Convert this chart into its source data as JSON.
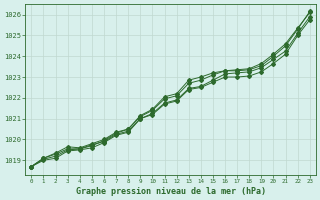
{
  "xlabel": "Graphe pression niveau de la mer (hPa)",
  "ylim": [
    1018.3,
    1026.5
  ],
  "xlim": [
    -0.5,
    23.5
  ],
  "yticks": [
    1019,
    1020,
    1021,
    1022,
    1023,
    1024,
    1025,
    1026
  ],
  "xticks": [
    0,
    1,
    2,
    3,
    4,
    5,
    6,
    7,
    8,
    9,
    10,
    11,
    12,
    13,
    14,
    15,
    16,
    17,
    18,
    19,
    20,
    21,
    22,
    23
  ],
  "bg_color": "#d8f0ec",
  "line_color": "#2d6a2d",
  "grid_color": "#c0d8d0",
  "line1": [
    1018.7,
    1019.1,
    1019.3,
    1019.55,
    1019.55,
    1019.75,
    1019.9,
    1020.25,
    1020.4,
    1021.0,
    1021.25,
    1021.75,
    1021.9,
    1022.45,
    1022.55,
    1022.85,
    1023.15,
    1023.2,
    1023.25,
    1023.45,
    1023.85,
    1024.25,
    1025.1,
    1025.9
  ],
  "line2": [
    1018.7,
    1019.1,
    1019.35,
    1019.65,
    1019.6,
    1019.8,
    1020.0,
    1020.35,
    1020.5,
    1021.1,
    1021.4,
    1021.95,
    1022.1,
    1022.7,
    1022.85,
    1023.1,
    1023.3,
    1023.35,
    1023.4,
    1023.65,
    1024.1,
    1024.6,
    1025.35,
    1026.1
  ],
  "line3": [
    1018.7,
    1019.05,
    1019.2,
    1019.5,
    1019.55,
    1019.7,
    1019.95,
    1020.3,
    1020.5,
    1021.15,
    1021.45,
    1022.05,
    1022.2,
    1022.85,
    1023.0,
    1023.2,
    1023.3,
    1023.3,
    1023.35,
    1023.55,
    1024.0,
    1024.5,
    1025.3,
    1026.15
  ],
  "line4": [
    1018.7,
    1019.0,
    1019.1,
    1019.45,
    1019.5,
    1019.6,
    1019.85,
    1020.2,
    1020.35,
    1021.0,
    1021.2,
    1021.7,
    1021.85,
    1022.4,
    1022.5,
    1022.75,
    1023.0,
    1023.0,
    1023.05,
    1023.25,
    1023.65,
    1024.1,
    1025.0,
    1025.75
  ]
}
